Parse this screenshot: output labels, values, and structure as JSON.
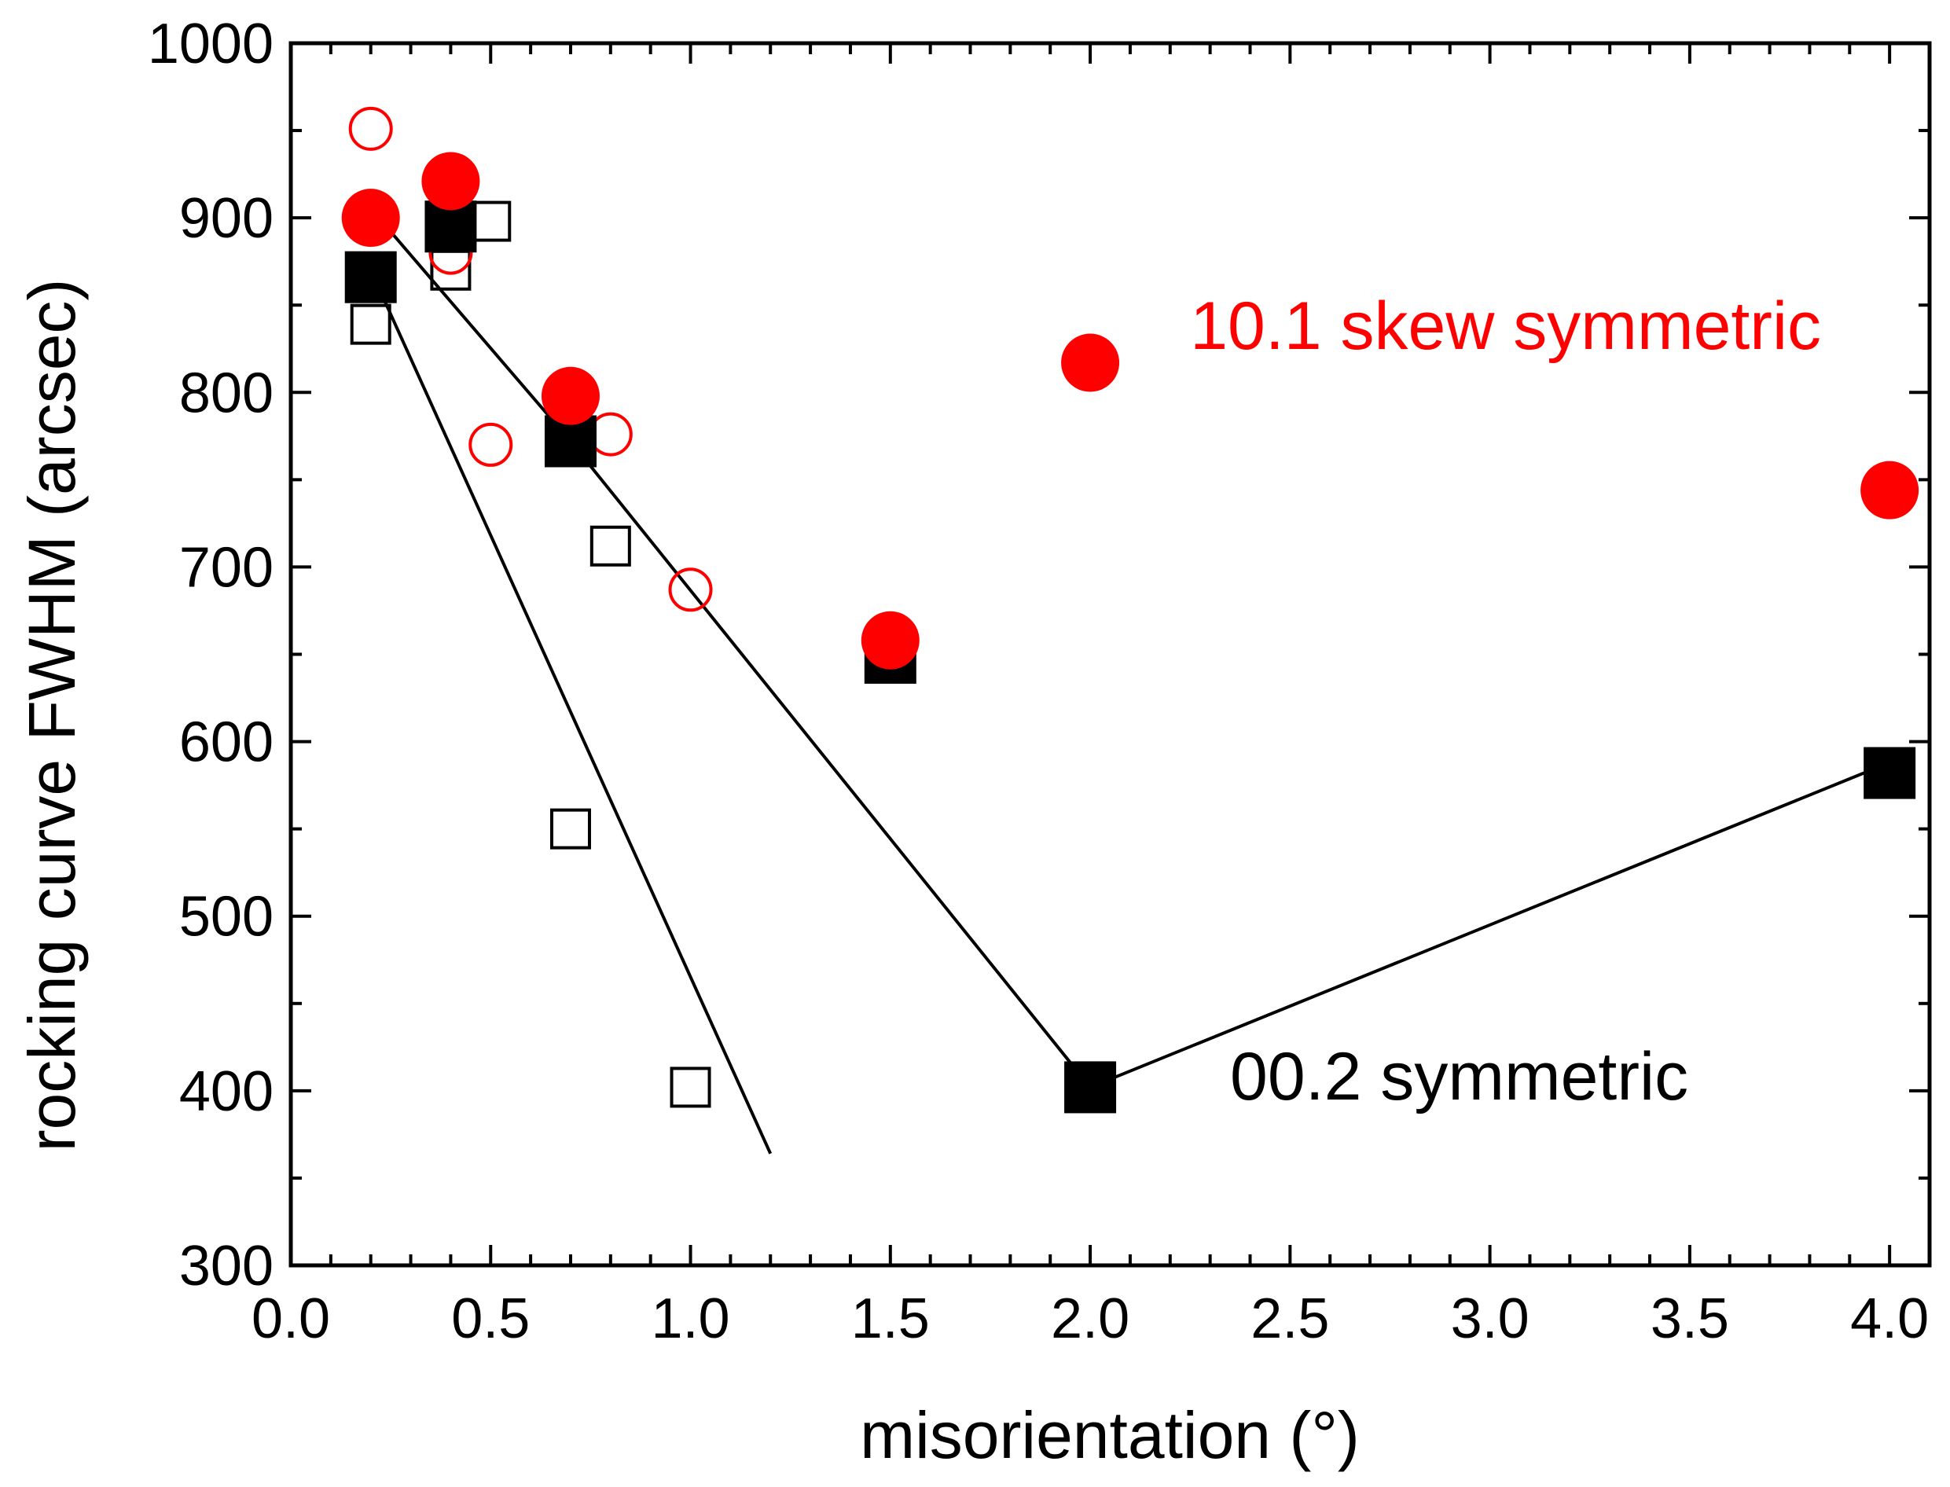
{
  "chart_data": {
    "type": "scatter",
    "title": "",
    "xlabel": "misorientation  (°)",
    "ylabel": "rocking curve FWHM  (arcsec)",
    "xlim": [
      0.0,
      4.1
    ],
    "ylim": [
      300,
      1000
    ],
    "x_ticks": [
      0.0,
      0.5,
      1.0,
      1.5,
      2.0,
      2.5,
      3.0,
      3.5,
      4.0
    ],
    "x_tick_labels": [
      "0.0",
      "0.5",
      "1.0",
      "1.5",
      "2.0",
      "2.5",
      "3.0",
      "3.5",
      "4.0"
    ],
    "y_ticks": [
      300,
      400,
      500,
      600,
      700,
      800,
      900,
      1000
    ],
    "y_tick_labels": [
      "300",
      "400",
      "500",
      "600",
      "700",
      "800",
      "900",
      "1000"
    ],
    "grid": false,
    "series": [
      {
        "name": "00.2 symmetric (filled)",
        "marker": "square-filled",
        "color": "#000000",
        "x": [
          0.2,
          0.4,
          0.7,
          1.5,
          2.0,
          4.0
        ],
        "y": [
          866,
          895,
          772,
          648,
          402,
          582
        ]
      },
      {
        "name": "00.2 symmetric (open)",
        "marker": "square-open",
        "color": "#000000",
        "x": [
          0.2,
          0.4,
          0.5,
          0.7,
          0.8,
          1.0
        ],
        "y": [
          839,
          870,
          898,
          550,
          712,
          402
        ]
      },
      {
        "name": "10.1 skew symmetric (filled)",
        "marker": "circle-filled",
        "color": "#ff0000",
        "x": [
          0.2,
          0.4,
          0.7,
          1.5,
          2.0,
          4.0
        ],
        "y": [
          900,
          921,
          798,
          658,
          817,
          744
        ]
      },
      {
        "name": "10.1 skew symmetric (open)",
        "marker": "circle-open",
        "color": "#ff0000",
        "x": [
          0.2,
          0.4,
          0.5,
          0.8,
          1.0
        ],
        "y": [
          951,
          880,
          770,
          776,
          687
        ]
      }
    ],
    "lines": [
      {
        "name": "fit-steep",
        "color": "#000000",
        "x": [
          0.2,
          1.2
        ],
        "y": [
          870,
          364
        ]
      },
      {
        "name": "fit-main",
        "color": "#000000",
        "x": [
          0.22,
          0.7,
          2.0,
          4.0
        ],
        "y": [
          900,
          772,
          402,
          588
        ]
      }
    ],
    "annotations": [
      {
        "text": "10.1 skew symmetric",
        "color": "#ff0000",
        "x": 2.25,
        "y": 825
      },
      {
        "text": "00.2 symmetric",
        "color": "#000000",
        "x": 2.35,
        "y": 395
      }
    ]
  }
}
